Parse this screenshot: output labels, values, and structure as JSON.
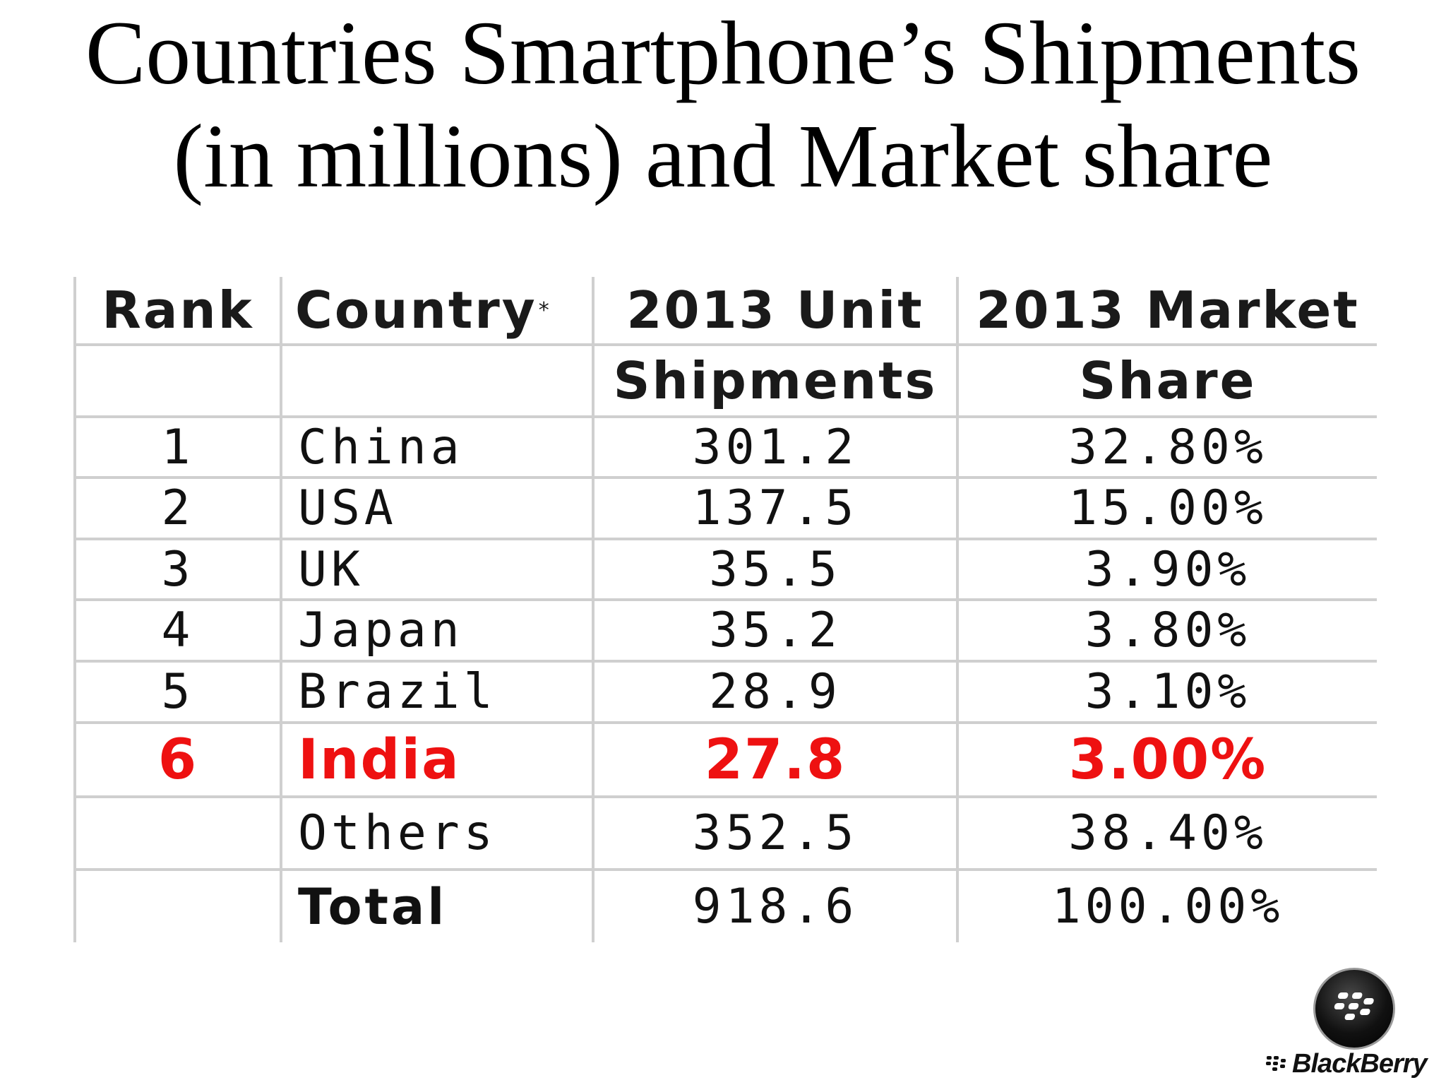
{
  "title": {
    "line1": "Countries Smartphone’s Shipments",
    "line2": "(in millions) and Market share"
  },
  "table": {
    "headers": {
      "rank": "Rank",
      "country": "Country",
      "country_marker": "*",
      "shipments_line1": "2013 Unit",
      "shipments_line2": "Shipments",
      "share_line1": "2013 Market",
      "share_line2": "Share"
    },
    "rows": [
      {
        "rank": "1",
        "country": "China",
        "shipments": "301.2",
        "share": "32.80%"
      },
      {
        "rank": "2",
        "country": "USA",
        "shipments": "137.5",
        "share": "15.00%"
      },
      {
        "rank": "3",
        "country": "UK",
        "shipments": "35.5",
        "share": "3.90%"
      },
      {
        "rank": "4",
        "country": "Japan",
        "shipments": "35.2",
        "share": "3.80%"
      },
      {
        "rank": "5",
        "country": "Brazil",
        "shipments": "28.9",
        "share": "3.10%"
      },
      {
        "rank": "6",
        "country": "India",
        "shipments": "27.8",
        "share": "3.00%"
      },
      {
        "rank": "",
        "country": "Others",
        "shipments": "352.5",
        "share": "38.40%"
      },
      {
        "rank": "",
        "country": "Total",
        "shipments": "918.6",
        "share": "100.00%"
      }
    ],
    "highlight_color": "#ee1111"
  },
  "logo": {
    "icon": "blackberry-logo-icon",
    "wordmark": "BlackBerry"
  }
}
